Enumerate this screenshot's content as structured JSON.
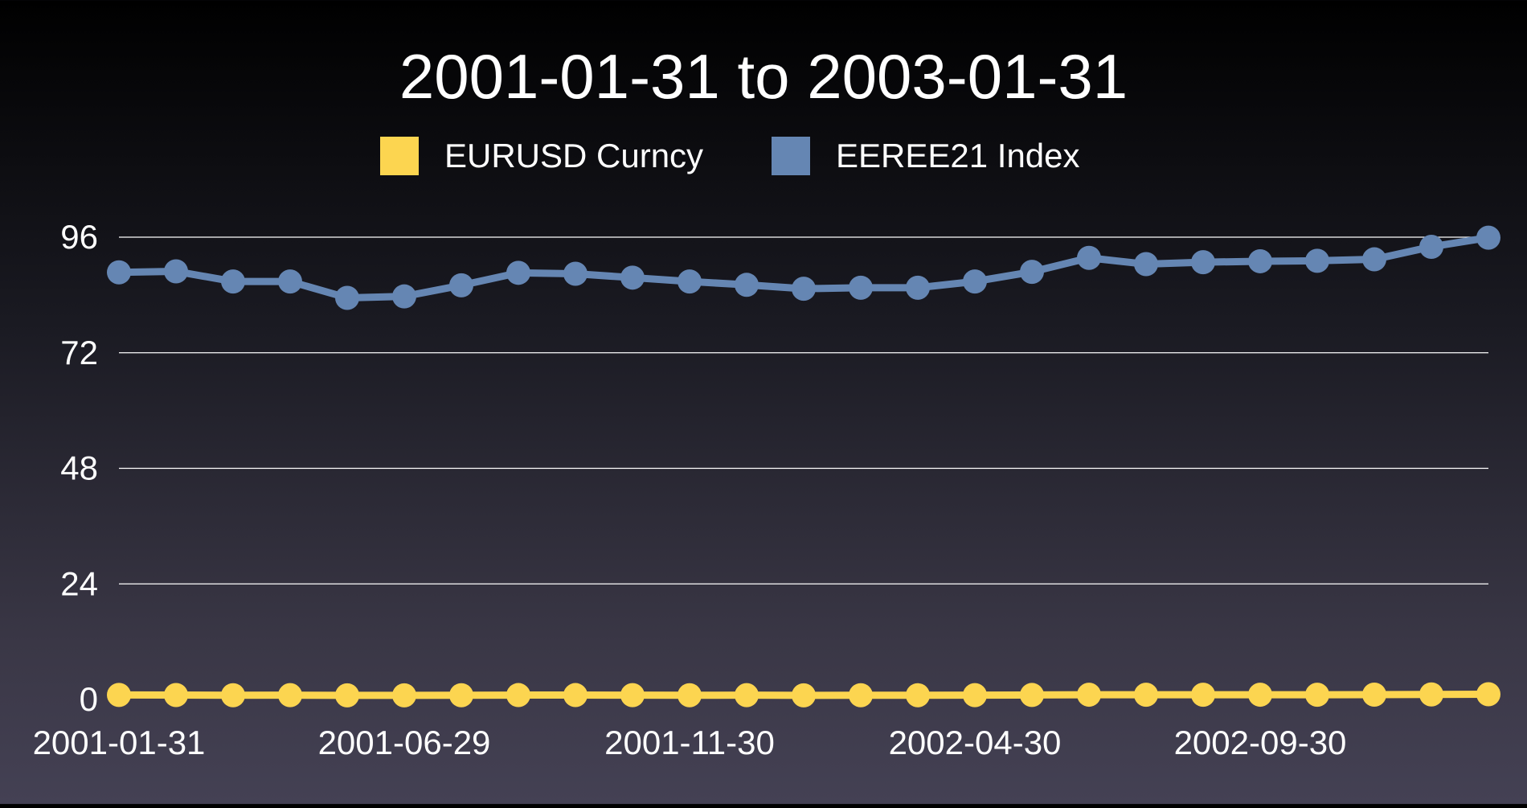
{
  "chart_data": {
    "type": "line",
    "title": "2001-01-31 to 2003-01-31",
    "xlabel": "",
    "ylabel": "",
    "ylim": [
      0,
      96
    ],
    "yticks": [
      0,
      24,
      48,
      72,
      96
    ],
    "grid": true,
    "legend_position": "top-center",
    "x": [
      "2001-01-31",
      "2001-02-28",
      "2001-03-30",
      "2001-04-30",
      "2001-05-31",
      "2001-06-29",
      "2001-07-31",
      "2001-08-31",
      "2001-09-28",
      "2001-10-31",
      "2001-11-30",
      "2001-12-31",
      "2002-01-31",
      "2002-02-28",
      "2002-03-29",
      "2002-04-30",
      "2002-05-31",
      "2002-06-28",
      "2002-07-31",
      "2002-08-30",
      "2002-09-30",
      "2002-10-31",
      "2002-11-29",
      "2002-12-31",
      "2003-01-31"
    ],
    "xtick_labels": [
      "2001-01-31",
      "2001-06-29",
      "2001-11-30",
      "2002-04-30",
      "2002-09-30"
    ],
    "series": [
      {
        "name": "EURUSD Curncy",
        "color": "#fcd550",
        "values": [
          0.94,
          0.92,
          0.88,
          0.89,
          0.85,
          0.85,
          0.88,
          0.91,
          0.91,
          0.9,
          0.88,
          0.89,
          0.86,
          0.87,
          0.87,
          0.9,
          0.93,
          0.99,
          0.98,
          0.98,
          0.99,
          0.98,
          1.0,
          1.05,
          1.08
        ]
      },
      {
        "name": "EEREE21 Index",
        "color": "#6586b3",
        "values": [
          88.7,
          88.9,
          86.8,
          86.8,
          83.4,
          83.7,
          86.0,
          88.6,
          88.4,
          87.6,
          86.8,
          86.1,
          85.3,
          85.5,
          85.5,
          86.8,
          88.8,
          91.7,
          90.4,
          90.8,
          91.0,
          91.1,
          91.4,
          94.0,
          95.9
        ]
      }
    ]
  }
}
